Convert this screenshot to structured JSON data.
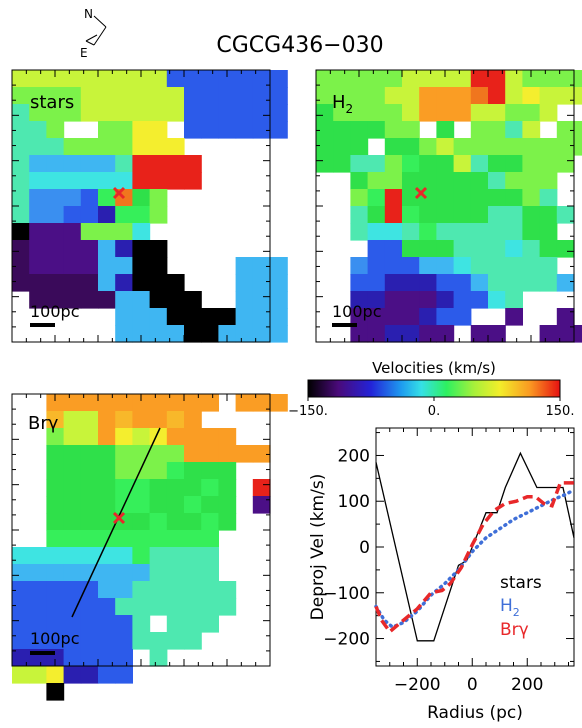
{
  "title": "CGCG436−030",
  "compass": {
    "north_label": "N",
    "east_label": "E"
  },
  "panels": [
    {
      "id": "stars",
      "label": "stars",
      "scale_label": "100pc"
    },
    {
      "id": "h2",
      "label": "H",
      "label_sub": "2",
      "scale_label": "100pc"
    },
    {
      "id": "brg",
      "label": "Brγ",
      "scale_label": "100pc"
    }
  ],
  "colorbar": {
    "title": "Velocities (km/s)",
    "ticks": [
      {
        "value": -150,
        "label": "−150."
      },
      {
        "value": 0,
        "label": "0."
      },
      {
        "value": 150,
        "label": "150."
      }
    ],
    "range": [
      -150,
      150
    ]
  },
  "chart_data": {
    "type": "line",
    "xlabel": "Radius (pc)",
    "ylabel": "Deproj Vel (km/s)",
    "xlim": [
      -350,
      370
    ],
    "ylim": [
      -260,
      260
    ],
    "xticks": [
      {
        "value": -200,
        "label": "−200"
      },
      {
        "value": 0,
        "label": "0"
      },
      {
        "value": 200,
        "label": "200"
      }
    ],
    "yticks": [
      {
        "value": -200,
        "label": "−200"
      },
      {
        "value": -100,
        "label": "−100"
      },
      {
        "value": 0,
        "label": "0"
      },
      {
        "value": 100,
        "label": "100"
      },
      {
        "value": 200,
        "label": "200"
      }
    ],
    "legend_position": "bottom-right",
    "series": [
      {
        "name": "stars",
        "color": "#000000",
        "style": "solid",
        "points": [
          [
            -350,
            185
          ],
          [
            -200,
            -205
          ],
          [
            -140,
            -205
          ],
          [
            -50,
            -40
          ],
          [
            -20,
            -30
          ],
          [
            50,
            75
          ],
          [
            90,
            75
          ],
          [
            120,
            130
          ],
          [
            175,
            205
          ],
          [
            235,
            130
          ],
          [
            330,
            130
          ],
          [
            370,
            20
          ]
        ]
      },
      {
        "name": "H2",
        "name_main": "H",
        "name_sub": "2",
        "color": "#3f6fd8",
        "style": "dotted",
        "points": [
          [
            -350,
            -130
          ],
          [
            -320,
            -160
          ],
          [
            -290,
            -175
          ],
          [
            -250,
            -165
          ],
          [
            -200,
            -140
          ],
          [
            -150,
            -105
          ],
          [
            -100,
            -80
          ],
          [
            -50,
            -50
          ],
          [
            0,
            -10
          ],
          [
            50,
            20
          ],
          [
            100,
            40
          ],
          [
            150,
            60
          ],
          [
            200,
            75
          ],
          [
            250,
            90
          ],
          [
            300,
            105
          ],
          [
            340,
            115
          ],
          [
            370,
            125
          ]
        ]
      },
      {
        "name": "Brγ",
        "color": "#e8282a",
        "style": "dashed",
        "points": [
          [
            -350,
            -130
          ],
          [
            -330,
            -160
          ],
          [
            -300,
            -185
          ],
          [
            -250,
            -160
          ],
          [
            -200,
            -135
          ],
          [
            -150,
            -100
          ],
          [
            -110,
            -95
          ],
          [
            -80,
            -80
          ],
          [
            -40,
            -45
          ],
          [
            0,
            5
          ],
          [
            40,
            50
          ],
          [
            80,
            80
          ],
          [
            120,
            95
          ],
          [
            160,
            100
          ],
          [
            200,
            110
          ],
          [
            230,
            110
          ],
          [
            260,
            95
          ],
          [
            290,
            90
          ],
          [
            320,
            140
          ],
          [
            350,
            140
          ],
          [
            370,
            140
          ]
        ]
      }
    ]
  }
}
